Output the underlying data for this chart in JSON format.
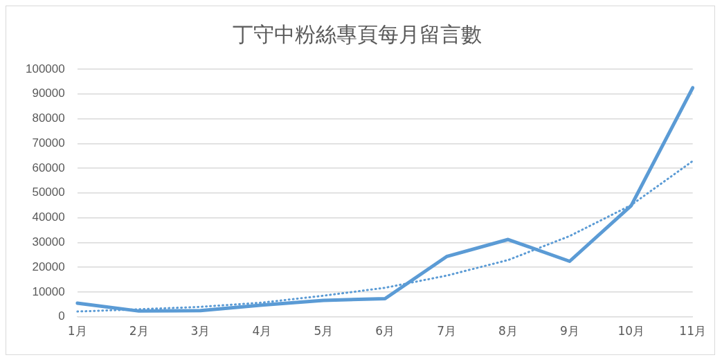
{
  "chart_data": {
    "type": "line",
    "title": "丁守中粉絲專頁每月留言數",
    "categories": [
      "1月",
      "2月",
      "3月",
      "4月",
      "5月",
      "6月",
      "7月",
      "8月",
      "9月",
      "10月",
      "11月"
    ],
    "series": [
      {
        "color": "#5b9bd5",
        "values": [
          5500,
          2300,
          2500,
          4700,
          6600,
          7300,
          24300,
          31200,
          22400,
          44900,
          92500
        ],
        "line_style": "solid"
      },
      {
        "color": "#5b9bd5",
        "values": [
          2100,
          3000,
          4000,
          5700,
          8500,
          11700,
          16600,
          22900,
          32600,
          45100,
          62900
        ],
        "line_style": "dotted"
      }
    ],
    "ylim": [
      0,
      100000
    ],
    "yticks": [
      0,
      10000,
      20000,
      30000,
      40000,
      50000,
      60000,
      70000,
      80000,
      90000,
      100000
    ],
    "grid": "y",
    "legend": false,
    "marker": "none"
  }
}
